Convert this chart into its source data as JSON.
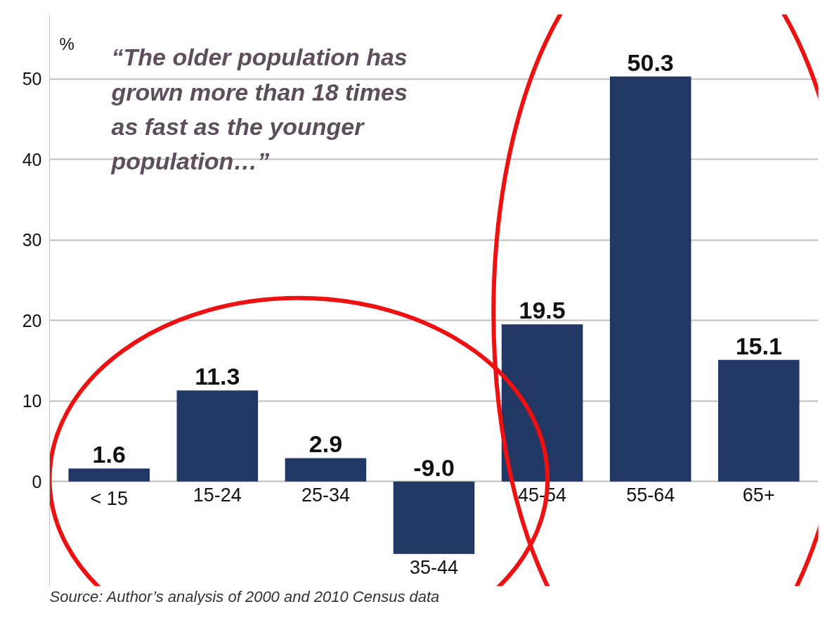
{
  "chart_data": {
    "type": "bar",
    "categories": [
      "< 15",
      "15-24",
      "25-34",
      "35-44",
      "45-54",
      "55-64",
      "65+"
    ],
    "values": [
      1.6,
      11.3,
      2.9,
      -9.0,
      19.5,
      50.3,
      15.1
    ],
    "value_labels": [
      "1.6",
      "11.3",
      "2.9",
      "-9.0",
      "19.5",
      "50.3",
      "15.1"
    ],
    "color": "#213764",
    "ylabel": "%",
    "ylim": [
      -13,
      58
    ],
    "yticks": [
      0,
      10,
      20,
      30,
      40,
      50
    ],
    "grid": "y",
    "annotations": [
      "“The older population has\ngrown more than 18 times\nas fast as the younger\npopulation…”",
      "Source: Author’s analysis of 2000 and 2010 Census data"
    ]
  }
}
